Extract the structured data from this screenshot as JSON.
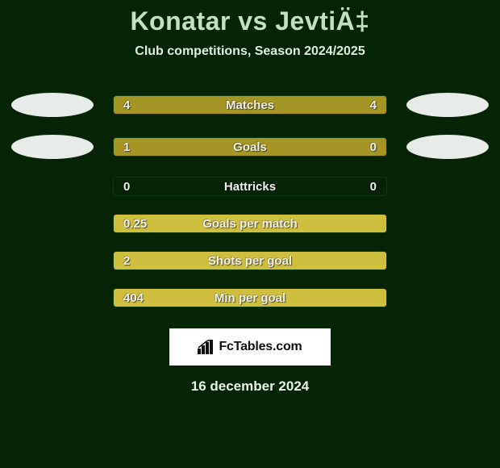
{
  "title": "Konatar vs JevtiÄ‡",
  "subtitle": "Club competitions, Season 2024/2025",
  "date": "16 december 2024",
  "logo_text": "FcTables.com",
  "colors": {
    "background": "#052406",
    "left_fill": "#a69524",
    "right_fill": "#a69524",
    "left_hi": "#d0bf3f",
    "right_hi": "#d0bf3f",
    "empty": "rgba(255,255,255,0.02)",
    "ellipse": "#e8ece8",
    "white": "#ffffff"
  },
  "rows": [
    {
      "label": "Matches",
      "left_value": "4",
      "right_value": "4",
      "left_pct": 50,
      "right_pct": 50,
      "left_full": false,
      "right_full": false,
      "show_left_ellipse": true,
      "show_right_ellipse": true
    },
    {
      "label": "Goals",
      "left_value": "1",
      "right_value": "0",
      "left_pct": 78,
      "right_pct": 22,
      "left_full": false,
      "right_full": false,
      "show_left_ellipse": true,
      "show_right_ellipse": true
    },
    {
      "label": "Hattricks",
      "left_value": "0",
      "right_value": "0",
      "left_pct": 0,
      "right_pct": 0,
      "left_full": false,
      "right_full": false,
      "show_left_ellipse": false,
      "show_right_ellipse": false
    },
    {
      "label": "Goals per match",
      "left_value": "0.25",
      "right_value": "",
      "left_pct": 100,
      "right_pct": 0,
      "left_full": true,
      "right_full": false,
      "show_left_ellipse": false,
      "show_right_ellipse": false
    },
    {
      "label": "Shots per goal",
      "left_value": "2",
      "right_value": "",
      "left_pct": 100,
      "right_pct": 0,
      "left_full": true,
      "right_full": false,
      "show_left_ellipse": false,
      "show_right_ellipse": false
    },
    {
      "label": "Min per goal",
      "left_value": "404",
      "right_value": "",
      "left_pct": 100,
      "right_pct": 0,
      "left_full": true,
      "right_full": false,
      "show_left_ellipse": false,
      "show_right_ellipse": false
    }
  ]
}
